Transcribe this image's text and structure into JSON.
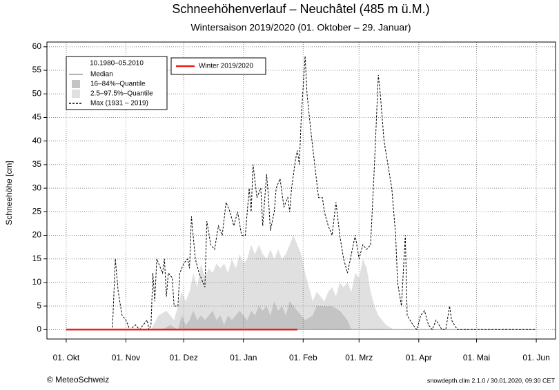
{
  "chart_data": {
    "type": "line",
    "title": "Schneehöhenverlauf – Neuchâtel (485 m ü.M.)",
    "subtitle": "Wintersaison 2019/2020 (01. Oktober – 29. Januar)",
    "y_label": "Schneehöhe [cm]",
    "legend_title": "10.1980–05.2010",
    "footer_left": "© MeteoSchweiz",
    "footer_right": "snowdepth.clim 2.1.0 / 30.01.2020, 09:30 CET",
    "grid": true,
    "xlim": [
      -10,
      254
    ],
    "xticks": [
      {
        "value": 0,
        "label": "01. Okt"
      },
      {
        "value": 31,
        "label": "01. Nov"
      },
      {
        "value": 61,
        "label": "01. Dez"
      },
      {
        "value": 92,
        "label": "01. Jan"
      },
      {
        "value": 123,
        "label": "01. Feb"
      },
      {
        "value": 152,
        "label": "01. Mrz"
      },
      {
        "value": 183,
        "label": "01. Apr"
      },
      {
        "value": 213,
        "label": "01. Mai"
      },
      {
        "value": 244,
        "label": "01. Jun"
      }
    ],
    "ylim": [
      -2,
      61
    ],
    "yticks": [
      0,
      5,
      10,
      15,
      20,
      25,
      30,
      35,
      40,
      45,
      50,
      55,
      60
    ],
    "series": [
      {
        "name": "2.5–97.5%–Quantile",
        "kind": "area",
        "color": "#e0e0e0",
        "legend": 1,
        "x": [
          44,
          48,
          52,
          56,
          58,
          60,
          62,
          64,
          66,
          68,
          70,
          72,
          74,
          76,
          78,
          80,
          82,
          84,
          86,
          88,
          90,
          92,
          94,
          96,
          98,
          100,
          102,
          104,
          106,
          108,
          110,
          112,
          114,
          116,
          118,
          120,
          122,
          124,
          126,
          128,
          130,
          132,
          134,
          136,
          138,
          140,
          142,
          144,
          146,
          148,
          150,
          152,
          154,
          156,
          158,
          160,
          162,
          164,
          166,
          170
        ],
        "values": [
          0,
          3,
          4,
          2,
          5,
          8,
          6,
          8,
          12,
          9,
          14,
          11,
          13,
          12,
          14,
          13,
          14,
          12,
          15,
          13,
          16,
          14,
          15,
          18,
          16,
          18,
          16,
          15,
          17,
          15,
          17,
          15,
          16,
          18,
          20,
          18,
          16,
          12,
          9,
          6,
          8,
          7,
          6,
          8,
          9,
          7,
          10,
          9,
          10,
          8,
          12,
          11,
          15,
          13,
          8,
          5,
          3,
          2,
          1,
          0
        ]
      },
      {
        "name": "16–84%–Quantile",
        "kind": "area",
        "color": "#c4c4c4",
        "legend": 1,
        "x": [
          50,
          54,
          58,
          60,
          62,
          64,
          66,
          68,
          70,
          72,
          76,
          78,
          80,
          82,
          84,
          86,
          90,
          94,
          96,
          98,
          100,
          102,
          104,
          106,
          108,
          110,
          112,
          114,
          116,
          118,
          120,
          122,
          124,
          128,
          130,
          134,
          138,
          142,
          146,
          148
        ],
        "values": [
          0,
          1,
          0,
          3,
          1,
          2,
          4,
          2,
          3,
          2,
          4,
          2,
          3,
          1,
          3,
          2,
          4,
          2,
          4,
          3,
          5,
          4,
          5,
          3,
          6,
          4,
          5,
          3,
          6,
          5,
          4,
          3,
          2,
          3,
          5,
          5,
          5,
          4,
          2,
          0
        ]
      },
      {
        "name": "Median",
        "kind": "line",
        "color": "#9a9a9a",
        "legend": 1,
        "x": [
          0,
          244
        ],
        "values": [
          0,
          0
        ]
      },
      {
        "name": "Max (1931 – 2019)",
        "kind": "line",
        "dash": true,
        "color": "#000000",
        "legend": 1,
        "x": [
          0,
          24,
          25.5,
          27,
          29,
          31,
          33,
          36,
          38,
          40,
          42,
          43,
          44,
          45,
          46,
          47,
          50,
          51,
          52,
          53,
          55,
          56,
          58,
          59,
          61,
          63,
          64,
          65,
          67,
          69,
          71,
          72,
          73,
          75,
          77,
          79,
          81,
          83,
          85,
          87,
          89,
          91,
          93,
          95,
          96,
          97,
          99,
          101,
          102,
          104,
          105,
          106,
          108,
          109,
          111,
          113,
          115,
          116,
          117,
          119,
          120,
          121,
          122,
          124,
          125,
          127,
          129,
          131,
          133,
          134,
          136,
          138,
          140,
          142,
          144,
          146,
          148,
          150,
          152,
          154,
          156,
          158,
          160,
          162,
          163,
          165,
          167,
          169,
          171,
          172,
          174,
          176,
          177,
          180,
          182,
          184,
          186,
          188,
          190,
          192,
          195,
          197,
          199,
          200,
          203,
          244
        ],
        "values": [
          0,
          0,
          15,
          8,
          3,
          2,
          0,
          1,
          0,
          1,
          2,
          0,
          1,
          12,
          6,
          15,
          12,
          15,
          7,
          12,
          11,
          5,
          5,
          12,
          14,
          15,
          13,
          24,
          15,
          12,
          10,
          9,
          23,
          18,
          17,
          22,
          20,
          27,
          25,
          22,
          25,
          20,
          20,
          30,
          25,
          35,
          28,
          30,
          22,
          33,
          28,
          21,
          25,
          30,
          32,
          26,
          28,
          25,
          30,
          36,
          38,
          35,
          45,
          58,
          50,
          42,
          35,
          28,
          28,
          25,
          22,
          20,
          27,
          20,
          15,
          12,
          16,
          20,
          15,
          18,
          17,
          18,
          35,
          54,
          50,
          40,
          35,
          30,
          20,
          10,
          5,
          20,
          3,
          1,
          0,
          3,
          4,
          1,
          0,
          2,
          0,
          0,
          5,
          2,
          0,
          0
        ]
      },
      {
        "name": "Winter 2019/2020",
        "kind": "line",
        "color": "#e8201c",
        "width": 2.5,
        "legend": 2,
        "x": [
          0,
          120
        ],
        "values": [
          0,
          0
        ]
      }
    ]
  }
}
